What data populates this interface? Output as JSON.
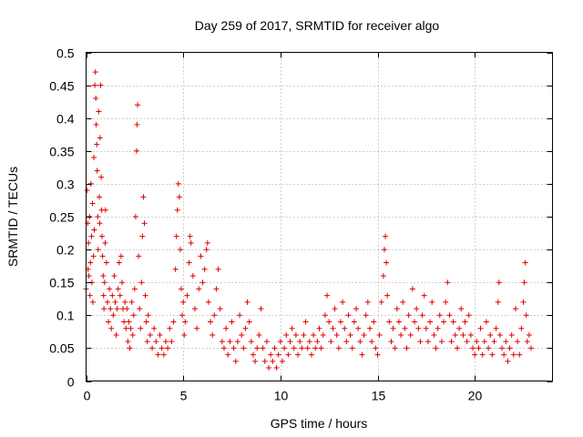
{
  "chart_data": {
    "type": "scatter",
    "title": "Day 259 of 2017, SRMTID for receiver algo",
    "xlabel": "GPS time / hours",
    "ylabel": "SRMTID / TECUs",
    "xlim": [
      0,
      24
    ],
    "ylim": [
      0,
      0.5
    ],
    "grid": true,
    "marker": "plus",
    "color": "#e00000",
    "x_ticks": [
      0,
      5,
      10,
      15,
      20
    ],
    "x_tick_labels": [
      "0",
      "5",
      "10",
      "15",
      "20"
    ],
    "y_ticks": [
      0,
      0.05,
      0.1,
      0.15,
      0.2,
      0.25,
      0.3,
      0.35,
      0.4,
      0.45,
      0.5
    ],
    "y_tick_labels": [
      "0",
      "0.05",
      "0.1",
      "0.15",
      "0.2",
      "0.25",
      "0.3",
      "0.35",
      "0.4",
      "0.45",
      "0.5"
    ],
    "series": [
      {
        "name": "SRMTID",
        "points": [
          [
            0.0,
            0.14
          ],
          [
            0.05,
            0.29
          ],
          [
            0.08,
            0.24
          ],
          [
            0.1,
            0.17
          ],
          [
            0.12,
            0.21
          ],
          [
            0.15,
            0.16
          ],
          [
            0.18,
            0.25
          ],
          [
            0.2,
            0.13
          ],
          [
            0.22,
            0.18
          ],
          [
            0.25,
            0.3
          ],
          [
            0.28,
            0.22
          ],
          [
            0.3,
            0.15
          ],
          [
            0.33,
            0.27
          ],
          [
            0.35,
            0.12
          ],
          [
            0.38,
            0.19
          ],
          [
            0.4,
            0.34
          ],
          [
            0.42,
            0.23
          ],
          [
            0.45,
            0.45
          ],
          [
            0.48,
            0.47
          ],
          [
            0.5,
            0.43
          ],
          [
            0.52,
            0.39
          ],
          [
            0.55,
            0.36
          ],
          [
            0.57,
            0.32
          ],
          [
            0.6,
            0.25
          ],
          [
            0.62,
            0.2
          ],
          [
            0.65,
            0.41
          ],
          [
            0.68,
            0.28
          ],
          [
            0.7,
            0.24
          ],
          [
            0.72,
            0.37
          ],
          [
            0.75,
            0.45
          ],
          [
            0.78,
            0.31
          ],
          [
            0.8,
            0.26
          ],
          [
            0.82,
            0.22
          ],
          [
            0.85,
            0.19
          ],
          [
            0.88,
            0.16
          ],
          [
            0.9,
            0.13
          ],
          [
            0.92,
            0.11
          ],
          [
            0.95,
            0.15
          ],
          [
            0.98,
            0.21
          ],
          [
            1.0,
            0.26
          ],
          [
            1.05,
            0.18
          ],
          [
            1.1,
            0.12
          ],
          [
            1.15,
            0.09
          ],
          [
            1.2,
            0.14
          ],
          [
            1.25,
            0.11
          ],
          [
            1.3,
            0.08
          ],
          [
            1.35,
            0.13
          ],
          [
            1.4,
            0.1
          ],
          [
            1.45,
            0.16
          ],
          [
            1.5,
            0.12
          ],
          [
            1.55,
            0.07
          ],
          [
            1.6,
            0.11
          ],
          [
            1.65,
            0.14
          ],
          [
            1.7,
            0.18
          ],
          [
            1.75,
            0.13
          ],
          [
            1.8,
            0.19
          ],
          [
            1.85,
            0.15
          ],
          [
            1.9,
            0.11
          ],
          [
            1.95,
            0.09
          ],
          [
            2.0,
            0.12
          ],
          [
            2.05,
            0.08
          ],
          [
            2.1,
            0.11
          ],
          [
            2.15,
            0.06
          ],
          [
            2.2,
            0.09
          ],
          [
            2.25,
            0.05
          ],
          [
            2.3,
            0.08
          ],
          [
            2.35,
            0.12
          ],
          [
            2.4,
            0.07
          ],
          [
            2.45,
            0.1
          ],
          [
            2.5,
            0.14
          ],
          [
            2.55,
            0.25
          ],
          [
            2.6,
            0.35
          ],
          [
            2.62,
            0.39
          ],
          [
            2.65,
            0.42
          ],
          [
            2.7,
            0.19
          ],
          [
            2.75,
            0.11
          ],
          [
            2.8,
            0.08
          ],
          [
            2.85,
            0.15
          ],
          [
            2.9,
            0.22
          ],
          [
            2.95,
            0.28
          ],
          [
            3.0,
            0.24
          ],
          [
            3.05,
            0.13
          ],
          [
            3.1,
            0.09
          ],
          [
            3.15,
            0.06
          ],
          [
            3.2,
            0.1
          ],
          [
            3.3,
            0.07
          ],
          [
            3.4,
            0.05
          ],
          [
            3.5,
            0.08
          ],
          [
            3.6,
            0.06
          ],
          [
            3.7,
            0.04
          ],
          [
            3.8,
            0.07
          ],
          [
            3.9,
            0.05
          ],
          [
            4.0,
            0.04
          ],
          [
            4.1,
            0.06
          ],
          [
            4.2,
            0.05
          ],
          [
            4.3,
            0.08
          ],
          [
            4.4,
            0.06
          ],
          [
            4.5,
            0.09
          ],
          [
            4.6,
            0.17
          ],
          [
            4.65,
            0.22
          ],
          [
            4.7,
            0.26
          ],
          [
            4.75,
            0.3
          ],
          [
            4.8,
            0.28
          ],
          [
            4.85,
            0.2
          ],
          [
            4.9,
            0.14
          ],
          [
            4.95,
            0.1
          ],
          [
            5.0,
            0.12
          ],
          [
            5.05,
            0.07
          ],
          [
            5.1,
            0.09
          ],
          [
            5.2,
            0.13
          ],
          [
            5.3,
            0.18
          ],
          [
            5.35,
            0.22
          ],
          [
            5.4,
            0.21
          ],
          [
            5.5,
            0.16
          ],
          [
            5.6,
            0.11
          ],
          [
            5.7,
            0.08
          ],
          [
            5.8,
            0.14
          ],
          [
            5.9,
            0.19
          ],
          [
            6.0,
            0.15
          ],
          [
            6.1,
            0.17
          ],
          [
            6.2,
            0.2
          ],
          [
            6.25,
            0.21
          ],
          [
            6.3,
            0.12
          ],
          [
            6.4,
            0.09
          ],
          [
            6.5,
            0.07
          ],
          [
            6.6,
            0.1
          ],
          [
            6.7,
            0.14
          ],
          [
            6.8,
            0.17
          ],
          [
            6.9,
            0.11
          ],
          [
            7.0,
            0.06
          ],
          [
            7.1,
            0.05
          ],
          [
            7.2,
            0.08
          ],
          [
            7.3,
            0.04
          ],
          [
            7.4,
            0.06
          ],
          [
            7.5,
            0.09
          ],
          [
            7.6,
            0.05
          ],
          [
            7.7,
            0.03
          ],
          [
            7.8,
            0.06
          ],
          [
            7.9,
            0.1
          ],
          [
            8.0,
            0.07
          ],
          [
            8.1,
            0.05
          ],
          [
            8.2,
            0.08
          ],
          [
            8.3,
            0.12
          ],
          [
            8.4,
            0.09
          ],
          [
            8.5,
            0.06
          ],
          [
            8.6,
            0.04
          ],
          [
            8.7,
            0.03
          ],
          [
            8.8,
            0.05
          ],
          [
            8.9,
            0.07
          ],
          [
            9.0,
            0.11
          ],
          [
            9.1,
            0.05
          ],
          [
            9.2,
            0.03
          ],
          [
            9.3,
            0.06
          ],
          [
            9.4,
            0.02
          ],
          [
            9.5,
            0.04
          ],
          [
            9.6,
            0.03
          ],
          [
            9.7,
            0.05
          ],
          [
            9.8,
            0.02
          ],
          [
            9.9,
            0.04
          ],
          [
            10.0,
            0.06
          ],
          [
            10.1,
            0.03
          ],
          [
            10.2,
            0.05
          ],
          [
            10.3,
            0.07
          ],
          [
            10.4,
            0.04
          ],
          [
            10.5,
            0.06
          ],
          [
            10.6,
            0.08
          ],
          [
            10.7,
            0.05
          ],
          [
            10.8,
            0.07
          ],
          [
            10.9,
            0.04
          ],
          [
            11.0,
            0.06
          ],
          [
            11.1,
            0.05
          ],
          [
            11.2,
            0.07
          ],
          [
            11.3,
            0.09
          ],
          [
            11.4,
            0.05
          ],
          [
            11.5,
            0.06
          ],
          [
            11.6,
            0.04
          ],
          [
            11.7,
            0.07
          ],
          [
            11.8,
            0.05
          ],
          [
            11.9,
            0.06
          ],
          [
            12.0,
            0.08
          ],
          [
            12.1,
            0.05
          ],
          [
            12.2,
            0.07
          ],
          [
            12.3,
            0.1
          ],
          [
            12.4,
            0.13
          ],
          [
            12.5,
            0.09
          ],
          [
            12.6,
            0.06
          ],
          [
            12.7,
            0.08
          ],
          [
            12.8,
            0.11
          ],
          [
            12.9,
            0.07
          ],
          [
            13.0,
            0.05
          ],
          [
            13.1,
            0.09
          ],
          [
            13.2,
            0.12
          ],
          [
            13.3,
            0.08
          ],
          [
            13.4,
            0.06
          ],
          [
            13.5,
            0.1
          ],
          [
            13.6,
            0.07
          ],
          [
            13.7,
            0.05
          ],
          [
            13.8,
            0.09
          ],
          [
            13.9,
            0.11
          ],
          [
            14.0,
            0.08
          ],
          [
            14.1,
            0.06
          ],
          [
            14.2,
            0.04
          ],
          [
            14.3,
            0.07
          ],
          [
            14.4,
            0.1
          ],
          [
            14.5,
            0.12
          ],
          [
            14.6,
            0.08
          ],
          [
            14.7,
            0.06
          ],
          [
            14.8,
            0.09
          ],
          [
            14.9,
            0.05
          ],
          [
            15.0,
            0.04
          ],
          [
            15.1,
            0.07
          ],
          [
            15.2,
            0.12
          ],
          [
            15.3,
            0.16
          ],
          [
            15.35,
            0.2
          ],
          [
            15.4,
            0.22
          ],
          [
            15.45,
            0.18
          ],
          [
            15.5,
            0.13
          ],
          [
            15.6,
            0.09
          ],
          [
            15.7,
            0.06
          ],
          [
            15.8,
            0.08
          ],
          [
            15.9,
            0.05
          ],
          [
            16.0,
            0.11
          ],
          [
            16.1,
            0.09
          ],
          [
            16.2,
            0.07
          ],
          [
            16.3,
            0.12
          ],
          [
            16.4,
            0.08
          ],
          [
            16.5,
            0.05
          ],
          [
            16.6,
            0.1
          ],
          [
            16.7,
            0.07
          ],
          [
            16.8,
            0.14
          ],
          [
            16.9,
            0.09
          ],
          [
            17.0,
            0.11
          ],
          [
            17.1,
            0.08
          ],
          [
            17.2,
            0.06
          ],
          [
            17.3,
            0.1
          ],
          [
            17.4,
            0.13
          ],
          [
            17.5,
            0.08
          ],
          [
            17.6,
            0.06
          ],
          [
            17.7,
            0.09
          ],
          [
            17.8,
            0.12
          ],
          [
            17.9,
            0.07
          ],
          [
            18.0,
            0.05
          ],
          [
            18.1,
            0.08
          ],
          [
            18.2,
            0.1
          ],
          [
            18.3,
            0.06
          ],
          [
            18.4,
            0.09
          ],
          [
            18.5,
            0.12
          ],
          [
            18.6,
            0.15
          ],
          [
            18.7,
            0.1
          ],
          [
            18.8,
            0.06
          ],
          [
            18.9,
            0.09
          ],
          [
            19.0,
            0.07
          ],
          [
            19.1,
            0.05
          ],
          [
            19.2,
            0.08
          ],
          [
            19.3,
            0.11
          ],
          [
            19.4,
            0.07
          ],
          [
            19.5,
            0.09
          ],
          [
            19.6,
            0.06
          ],
          [
            19.7,
            0.1
          ],
          [
            19.8,
            0.07
          ],
          [
            19.9,
            0.05
          ],
          [
            20.0,
            0.04
          ],
          [
            20.1,
            0.06
          ],
          [
            20.2,
            0.05
          ],
          [
            20.3,
            0.08
          ],
          [
            20.4,
            0.04
          ],
          [
            20.5,
            0.06
          ],
          [
            20.6,
            0.09
          ],
          [
            20.7,
            0.05
          ],
          [
            20.8,
            0.07
          ],
          [
            20.9,
            0.04
          ],
          [
            21.0,
            0.06
          ],
          [
            21.1,
            0.08
          ],
          [
            21.2,
            0.12
          ],
          [
            21.25,
            0.15
          ],
          [
            21.3,
            0.07
          ],
          [
            21.4,
            0.05
          ],
          [
            21.5,
            0.04
          ],
          [
            21.6,
            0.06
          ],
          [
            21.7,
            0.03
          ],
          [
            21.8,
            0.05
          ],
          [
            21.9,
            0.07
          ],
          [
            22.0,
            0.04
          ],
          [
            22.1,
            0.11
          ],
          [
            22.2,
            0.06
          ],
          [
            22.3,
            0.04
          ],
          [
            22.4,
            0.08
          ],
          [
            22.5,
            0.12
          ],
          [
            22.55,
            0.15
          ],
          [
            22.6,
            0.18
          ],
          [
            22.65,
            0.1
          ],
          [
            22.7,
            0.06
          ],
          [
            22.8,
            0.07
          ],
          [
            22.9,
            0.05
          ]
        ]
      }
    ]
  }
}
